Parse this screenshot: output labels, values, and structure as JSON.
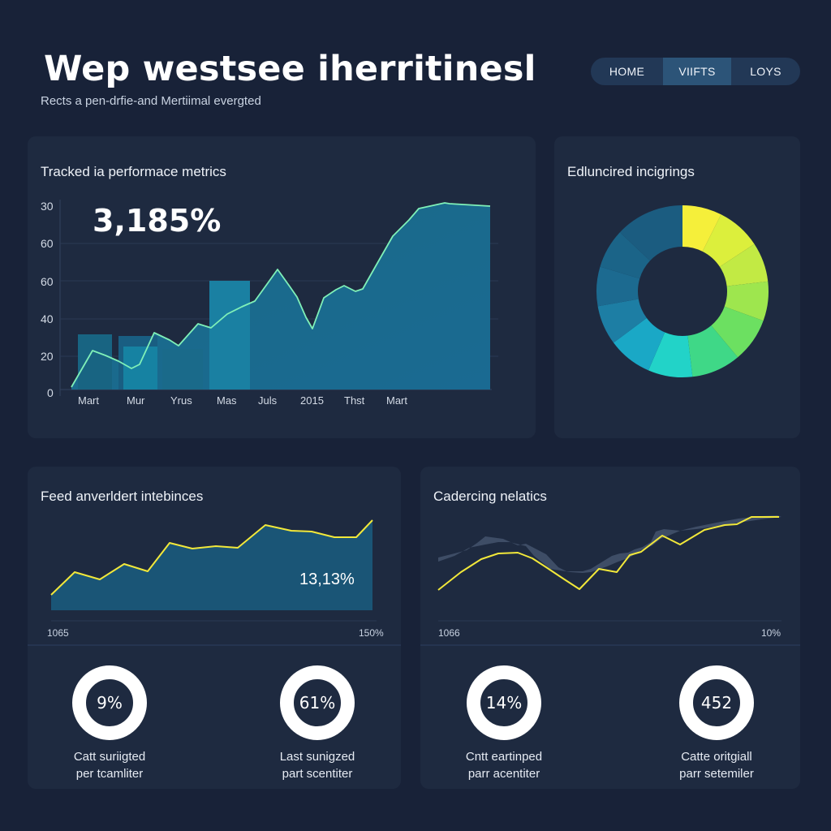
{
  "header": {
    "title": "Wep westsee iherritinesl",
    "subtitle": "Rects a pen-drfie-and Mertiimal evergted"
  },
  "nav": {
    "items": [
      {
        "label": "HOME",
        "active": false
      },
      {
        "label": "VIIFTS",
        "active": true
      },
      {
        "label": "LOYS",
        "active": false
      }
    ]
  },
  "cards": {
    "performance": {
      "title": "Tracked ia performace metrics",
      "big_metric": "3,185%",
      "y_ticks": [
        "30",
        "60",
        "60",
        "40",
        "20",
        "0"
      ],
      "x_ticks": [
        "Mart",
        "Mur",
        "Yrus",
        "Mas",
        "Juls",
        "2015",
        "Thst",
        "Mart"
      ]
    },
    "donut": {
      "title": "Edluncired incigrings"
    },
    "feed": {
      "title": "Feed anverldert intebinces",
      "overlay_metric": "13,13%",
      "range_start": "1065",
      "range_end": "150%",
      "kpis": [
        {
          "value": "9%",
          "label_line1": "Catt suriigted",
          "label_line2": "per tcamliter"
        },
        {
          "value": "61%",
          "label_line1": "Last sunigzed",
          "label_line2": "part scentiter"
        }
      ]
    },
    "cadence": {
      "title": "Cadercing nelatics",
      "range_start": "1066",
      "range_end": "10%",
      "kpis": [
        {
          "value": "14%",
          "label_line1": "Cntt eartinped",
          "label_line2": "parr acentiter"
        },
        {
          "value": "452",
          "label_line1": "Catte oritgiall",
          "label_line2": "parr setemiler"
        }
      ]
    }
  },
  "colors": {
    "background": "#182238",
    "card": "#1e2a40",
    "area_fill": "#1a6a8c",
    "bar_fill": "#1a7fa0",
    "line_mint": "#7ff0b8",
    "line_yellow": "#f2e83a",
    "nav_active": "#2c5478"
  },
  "chart_data": [
    {
      "type": "area",
      "title": "Tracked ia performace metrics",
      "categories": [
        "Mart",
        "Mur",
        "Yrus",
        "Mas",
        "Juls",
        "2015",
        "Thst",
        "Mart"
      ],
      "yticks": [
        "30",
        "60",
        "60",
        "40",
        "20",
        "0"
      ],
      "bars": [
        18,
        30,
        25,
        26,
        60
      ],
      "line": [
        3,
        22,
        18,
        13,
        16,
        32,
        27,
        37,
        35,
        41,
        44,
        47,
        60,
        66,
        55,
        33,
        54,
        60,
        55,
        56,
        75,
        84,
        92,
        90
      ],
      "annotation": "3,185%",
      "grid": true
    },
    {
      "type": "pie",
      "title": "Edluncired incigrings",
      "donut": true,
      "segments": [
        {
          "value": 8,
          "color": "#f5ef3a"
        },
        {
          "value": 9,
          "color": "#dcef3c"
        },
        {
          "value": 8,
          "color": "#c2ea44"
        },
        {
          "value": 8,
          "color": "#9ee64e"
        },
        {
          "value": 9,
          "color": "#6ce061"
        },
        {
          "value": 10,
          "color": "#3fd887"
        },
        {
          "value": 9,
          "color": "#22d3c8"
        },
        {
          "value": 9,
          "color": "#1aa8c6"
        },
        {
          "value": 8,
          "color": "#1d7ea4"
        },
        {
          "value": 8,
          "color": "#1c6a90"
        },
        {
          "value": 8,
          "color": "#1b6488"
        },
        {
          "value": 14,
          "color": "#1b5c80"
        }
      ]
    },
    {
      "type": "area",
      "title": "Feed anverldert intebinces",
      "x_range": [
        "1065",
        "150%"
      ],
      "values": [
        20,
        46,
        38,
        52,
        44,
        84,
        77,
        79,
        77,
        107,
        100,
        98,
        90,
        90,
        112
      ],
      "annotation": "13,13%"
    },
    {
      "type": "line",
      "title": "Cadercing nelatics",
      "x_range": [
        "1066",
        "10%"
      ],
      "values": [
        18,
        35,
        52,
        72,
        73,
        65,
        45,
        32,
        57,
        54,
        78,
        82,
        101,
        91,
        109,
        114,
        117,
        125,
        125,
        125
      ],
      "band_upper": [
        33,
        42,
        76,
        76,
        68,
        42,
        22,
        60,
        62,
        86,
        106,
        101,
        114,
        120,
        122
      ],
      "band_lower": [
        28,
        36,
        55,
        55,
        62,
        38,
        22,
        50,
        52,
        72,
        92,
        89,
        108,
        114,
        120
      ]
    }
  ]
}
